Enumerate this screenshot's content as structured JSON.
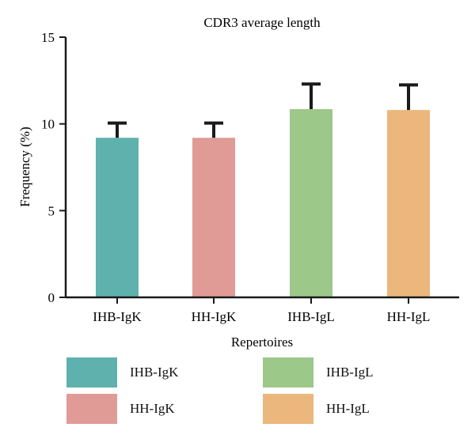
{
  "chart_data": {
    "type": "bar",
    "title": "CDR3 average length",
    "xlabel": "Repertoires",
    "ylabel": "Frequency (%)",
    "ylim": [
      0,
      15
    ],
    "yticks": [
      "0",
      "5",
      "10",
      "15"
    ],
    "categories": [
      "IHB-IgK",
      "HH-IgK",
      "IHB-IgL",
      "HH-IgL"
    ],
    "values": [
      9.2,
      9.2,
      10.85,
      10.8
    ],
    "errors": [
      0.85,
      0.85,
      1.45,
      1.45
    ],
    "colors": [
      "#5fb1ad",
      "#e09b97",
      "#9cc88a",
      "#ebb77c"
    ],
    "grid": false,
    "legend_position": "bottom"
  }
}
